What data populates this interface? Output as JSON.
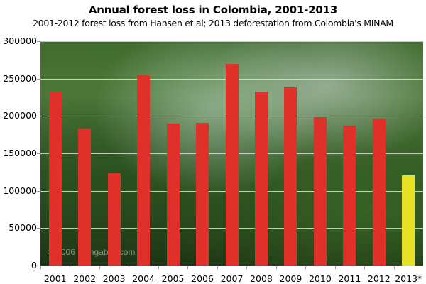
{
  "chart_data": {
    "type": "bar",
    "title": "Annual forest loss in Colombia, 2001-2013",
    "subtitle": "2001-2012 forest loss from Hansen et al; 2013 deforestation from Colombia's MINAM",
    "xlabel": "",
    "ylabel": "",
    "categories": [
      "2001",
      "2002",
      "2003",
      "2004",
      "2005",
      "2006",
      "2007",
      "2008",
      "2009",
      "2010",
      "2011",
      "2012",
      "2013*"
    ],
    "values": [
      232000,
      183000,
      123000,
      254000,
      190000,
      191000,
      270000,
      233000,
      238000,
      198000,
      187000,
      197000,
      121000
    ],
    "bar_colors": [
      "#e0302a",
      "#e0302a",
      "#e0302a",
      "#e0302a",
      "#e0302a",
      "#e0302a",
      "#e0302a",
      "#e0302a",
      "#e0302a",
      "#e0302a",
      "#e0302a",
      "#e0302a",
      "#e6df22"
    ],
    "ylim": [
      0,
      300000
    ],
    "yticks": [
      "300000",
      "250000",
      "200000",
      "150000",
      "100000",
      "50000",
      "0"
    ],
    "ytick_values": [
      300000,
      250000,
      200000,
      150000,
      100000,
      50000,
      0
    ],
    "grid": true,
    "background": "rainforest photograph",
    "annotations": [
      "© 2006 mongabay.com"
    ]
  },
  "watermark": "© 2006 mongabay.com"
}
